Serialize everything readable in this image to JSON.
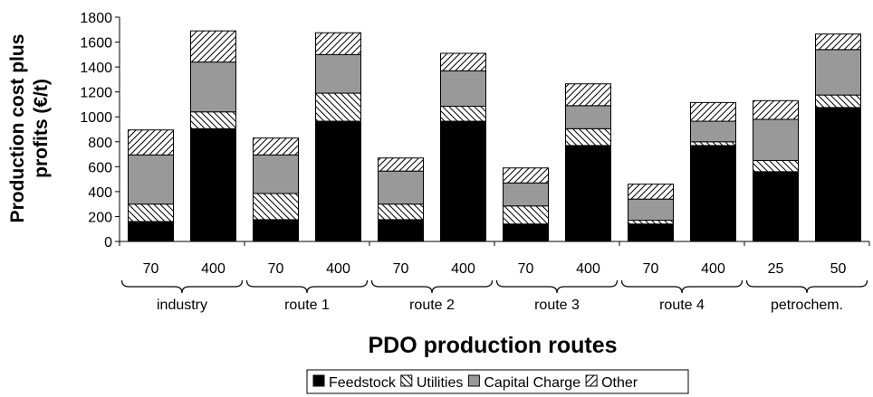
{
  "chart_data": {
    "type": "bar",
    "stacked": true,
    "xlabel": "PDO production routes",
    "ylabel_lines": [
      "Production cost plus",
      "profits (€/t)"
    ],
    "ylim": [
      0,
      1800
    ],
    "yticks": [
      0,
      200,
      400,
      600,
      800,
      1000,
      1200,
      1400,
      1600,
      1800
    ],
    "grid": false,
    "legend_position": "bottom",
    "categories": [
      "70",
      "400",
      "70",
      "400",
      "70",
      "400",
      "70",
      "400",
      "70",
      "400",
      "25",
      "50"
    ],
    "groups": [
      {
        "label": "industry",
        "span": [
          0,
          1
        ]
      },
      {
        "label": "route 1",
        "span": [
          2,
          3
        ]
      },
      {
        "label": "route 2",
        "span": [
          4,
          5
        ]
      },
      {
        "label": "route 3",
        "span": [
          6,
          7
        ]
      },
      {
        "label": "route 4",
        "span": [
          8,
          9
        ]
      },
      {
        "label": "petrochem.",
        "span": [
          10,
          11
        ]
      }
    ],
    "series": [
      {
        "name": "Feedstock",
        "pattern": "solid-black",
        "values": [
          160,
          905,
          175,
          965,
          175,
          965,
          140,
          770,
          140,
          770,
          560,
          1075
        ]
      },
      {
        "name": "Utilities",
        "pattern": "hatch-back",
        "values": [
          140,
          135,
          210,
          225,
          125,
          120,
          145,
          135,
          30,
          30,
          90,
          100
        ]
      },
      {
        "name": "Capital Charge",
        "pattern": "solid-gray",
        "values": [
          395,
          400,
          310,
          310,
          265,
          285,
          185,
          185,
          170,
          165,
          330,
          365
        ]
      },
      {
        "name": "Other",
        "pattern": "hatch-forward",
        "values": [
          200,
          250,
          135,
          175,
          105,
          140,
          120,
          175,
          120,
          150,
          150,
          125
        ]
      }
    ],
    "colors": {
      "feedstock": "#000000",
      "capital_charge": "#999999",
      "outline": "#000000"
    }
  }
}
